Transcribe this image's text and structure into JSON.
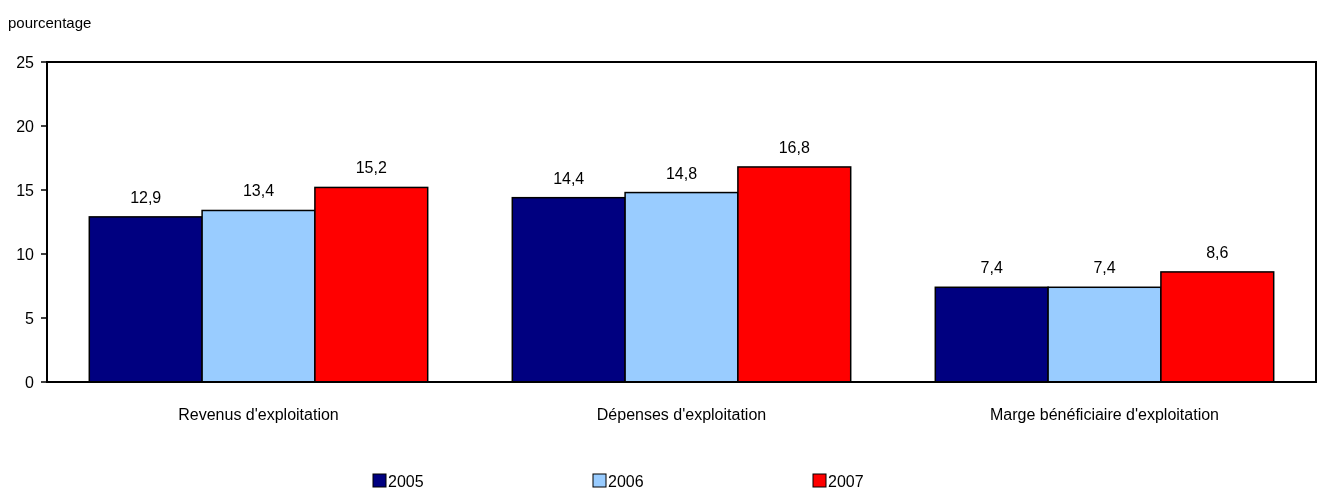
{
  "chart_data": {
    "type": "bar",
    "ylabel": "pourcentage",
    "categories": [
      "Revenus d'exploitation",
      "Dépenses d'exploitation",
      "Marge bénéficiaire d'exploitation"
    ],
    "series": [
      {
        "name": "2005",
        "color": "#000080",
        "values": [
          12.9,
          14.4,
          7.4
        ],
        "value_labels": [
          "12,9",
          "14,4",
          "7,4"
        ]
      },
      {
        "name": "2006",
        "color": "#99ccff",
        "values": [
          13.4,
          14.8,
          7.4
        ],
        "value_labels": [
          "13,4",
          "14,8",
          "7,4"
        ]
      },
      {
        "name": "2007",
        "color": "#ff0000",
        "values": [
          15.2,
          16.8,
          8.6
        ],
        "value_labels": [
          "15,2",
          "16,8",
          "8,6"
        ]
      }
    ],
    "ylim": [
      0,
      25
    ],
    "yticks": [
      0,
      5,
      10,
      15,
      20,
      25
    ],
    "grid": false,
    "legend": "bottom"
  }
}
